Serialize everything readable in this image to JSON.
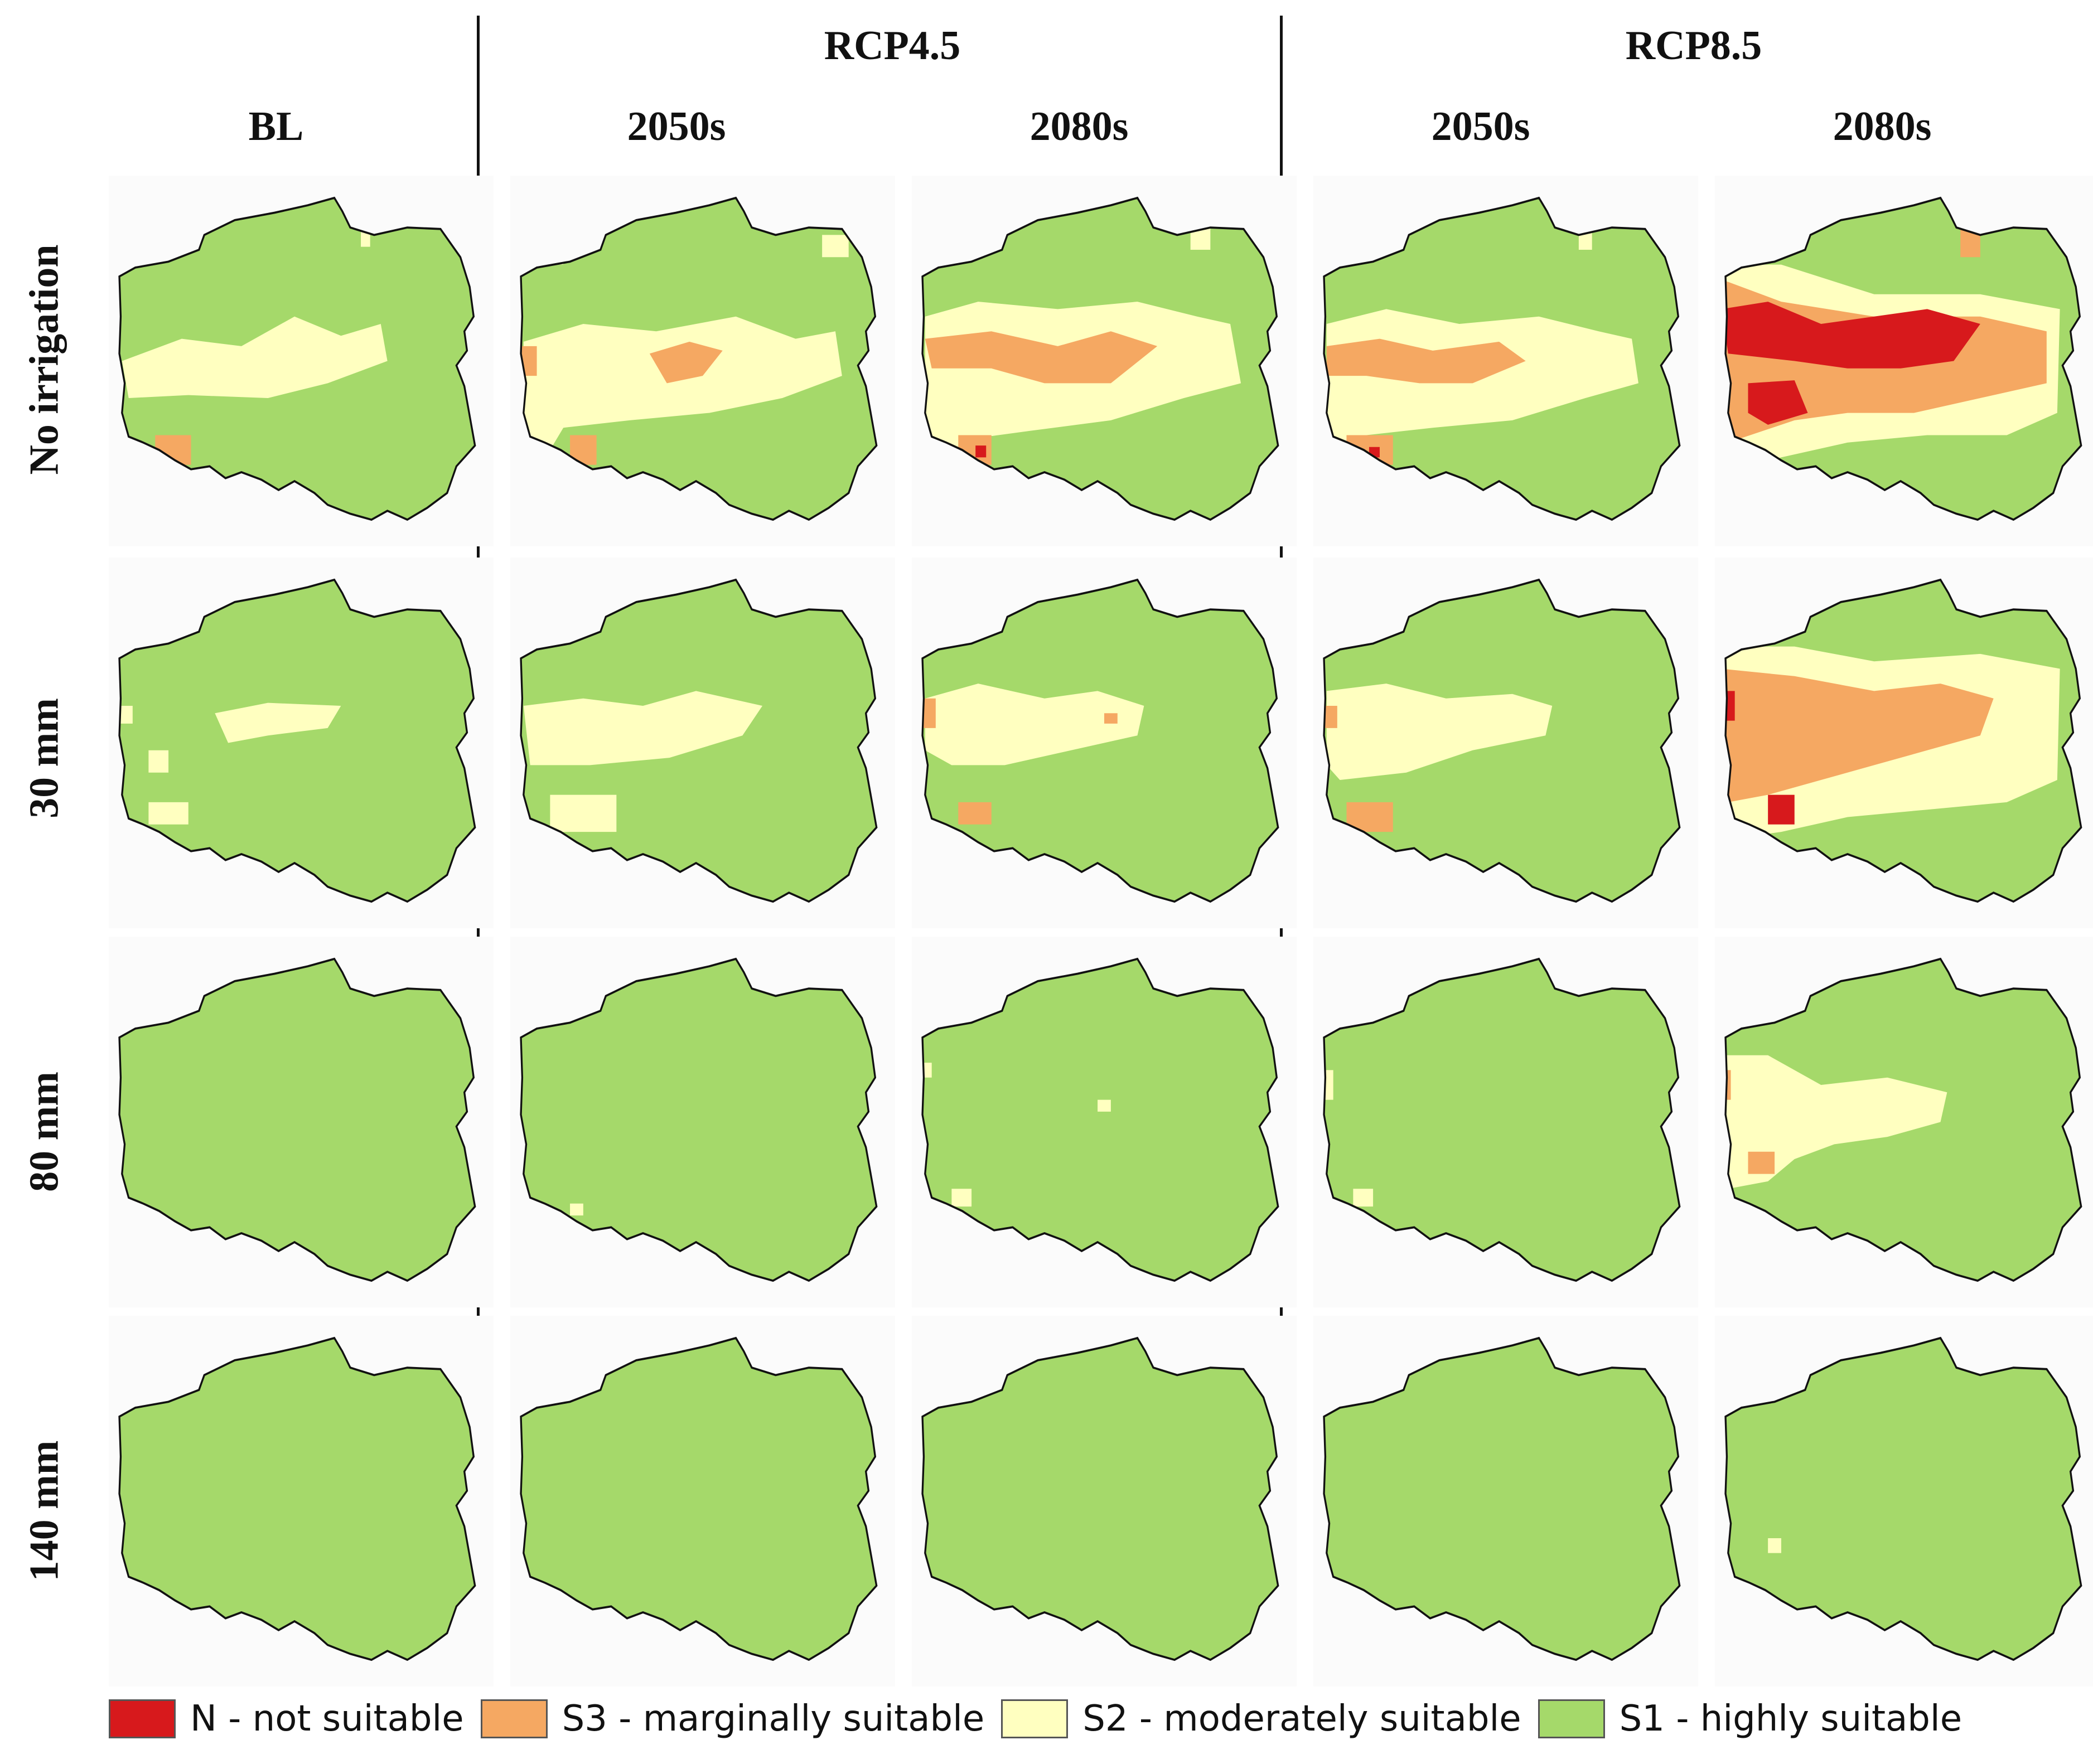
{
  "headers": {
    "scenarios": [
      {
        "id": "rcp45",
        "label": "RCP4.5"
      },
      {
        "id": "rcp85",
        "label": "RCP8.5"
      }
    ],
    "columns": [
      {
        "id": "bl",
        "label": "BL"
      },
      {
        "id": "rcp45-2050",
        "label": "2050s"
      },
      {
        "id": "rcp45-2080",
        "label": "2080s"
      },
      {
        "id": "rcp85-2050",
        "label": "2050s"
      },
      {
        "id": "rcp85-2080",
        "label": "2080s"
      }
    ],
    "rows": [
      {
        "id": "no-irrigation",
        "label": "No irrigation"
      },
      {
        "id": "30mm",
        "label": "30 mm"
      },
      {
        "id": "80mm",
        "label": "80 mm"
      },
      {
        "id": "140mm",
        "label": "140 mm"
      }
    ]
  },
  "classes": {
    "N": {
      "label": "N - not suitable",
      "color": "#d7191c"
    },
    "S3": {
      "label": "S3 - marginally suitable",
      "color": "#f5a862"
    },
    "S2": {
      "label": "S2 - moderately suitable",
      "color": "#ffffc0"
    },
    "S1": {
      "label": "S1 - highly suitable",
      "color": "#a5d96a"
    }
  },
  "legend": [
    "N",
    "S3",
    "S2",
    "S1"
  ],
  "maps": [
    {
      "row": "no-irrigation",
      "col": "bl",
      "patches": [
        [
          "S2",
          "M 10 125 L 55 110 L 100 115 L 140 95 L 175 108 L 205 100 L 210 125 L 165 140 L 120 150 L 60 148 L 15 150 Z"
        ],
        [
          "S2",
          "M 190 35 L 197 35 L 197 48 L 190 48 Z"
        ],
        [
          "S3",
          "M 35 175 L 62 175 L 62 195 L 35 195 Z"
        ]
      ]
    },
    {
      "row": "no-irrigation",
      "col": "rcp45-2050",
      "patches": [
        [
          "S2",
          "M 10 112 L 55 100 L 110 105 L 170 95 L 215 110 L 245 105 L 250 135 L 205 150 L 150 160 L 90 165 L 40 170 L 20 200 L 10 190 Z"
        ],
        [
          "S3",
          "M 105 120 L 135 112 L 160 118 L 145 135 L 118 140 Z"
        ],
        [
          "S3",
          "M 8 115 L 20 115 L 20 135 L 8 135 Z"
        ],
        [
          "S3",
          "M 45 175 L 65 175 L 65 195 L 45 195 Z"
        ],
        [
          "S2",
          "M 235 40 L 255 40 L 255 55 L 235 55 Z"
        ],
        [
          "S2",
          "M 25 45 L 40 45 L 40 60 L 25 60 Z"
        ]
      ]
    },
    {
      "row": "no-irrigation",
      "col": "rcp45-2080",
      "patches": [
        [
          "S2",
          "M 10 95 L 50 85 L 110 90 L 170 85 L 215 95 L 240 100 L 248 140 L 205 150 L 150 165 L 90 172 L 40 178 L 25 210 L 10 200 Z"
        ],
        [
          "S3",
          "M 10 110 L 60 105 L 110 115 L 150 105 L 185 115 L 150 140 L 100 140 L 60 130 L 15 130 Z"
        ],
        [
          "S3",
          "M 35 175 L 60 175 L 60 195 L 35 195 Z"
        ],
        [
          "N",
          "M 48 182 L 56 182 L 56 190 L 48 190 Z"
        ],
        [
          "S2",
          "M 20 35 L 45 35 L 45 55 L 20 55 Z"
        ],
        [
          "S2",
          "M 210 35 L 225 35 L 225 50 L 210 50 Z"
        ]
      ]
    },
    {
      "row": "no-irrigation",
      "col": "rcp85-2050",
      "patches": [
        [
          "S2",
          "M 10 100 L 55 90 L 110 100 L 170 95 L 215 105 L 240 110 L 245 140 L 205 150 L 150 165 L 90 170 L 40 175 L 20 200 L 10 190 Z"
        ],
        [
          "S3",
          "M 10 115 L 50 110 L 90 118 L 140 112 L 160 125 L 120 140 L 80 140 L 40 135 L 10 135 Z"
        ],
        [
          "S3",
          "M 25 175 L 60 175 L 60 195 L 25 195 Z"
        ],
        [
          "N",
          "M 42 183 L 50 183 L 50 190 L 42 190 Z"
        ],
        [
          "S2",
          "M 200 35 L 210 35 L 210 50 L 200 50 Z"
        ]
      ]
    },
    {
      "row": "no-irrigation",
      "col": "rcp85-2080",
      "patches": [
        [
          "S2",
          "M 5 60 L 50 60 L 120 80 L 200 80 L 260 90 L 258 160 L 220 175 L 160 175 L 100 180 L 50 190 L 10 200 Z"
        ],
        [
          "S3",
          "M 5 70 L 50 85 L 120 95 L 200 95 L 250 105 L 250 140 L 200 150 L 150 160 L 100 160 L 60 165 L 10 180 Z"
        ],
        [
          "N",
          "M 5 90 L 40 85 L 80 100 L 120 95 L 160 90 L 200 100 L 180 125 L 140 130 L 100 130 L 60 125 L 10 120 Z"
        ],
        [
          "N",
          "M 25 140 L 60 138 L 70 160 L 40 168 L 25 160 Z"
        ],
        [
          "N",
          "M 5 40 L 15 40 L 15 60 L 5 60 Z"
        ],
        [
          "S3",
          "M 185 35 L 200 35 L 200 55 L 185 55 Z"
        ]
      ]
    },
    {
      "row": "30mm",
      "col": "bl",
      "patches": [
        [
          "S2",
          "M 80 105 L 120 98 L 175 100 L 165 115 L 120 120 L 90 125 Z"
        ],
        [
          "S2",
          "M 30 130 L 45 130 L 45 145 L 30 145 Z"
        ],
        [
          "S2",
          "M 30 165 L 60 165 L 60 180 L 30 180 Z"
        ],
        [
          "S2",
          "M 8 100 L 18 100 L 18 112 L 8 112 Z"
        ]
      ]
    },
    {
      "row": "30mm",
      "col": "rcp45-2050",
      "patches": [
        [
          "S2",
          "M 10 100 L 55 95 L 100 100 L 140 90 L 190 100 L 175 120 L 120 135 L 60 140 L 15 140 Z"
        ],
        [
          "S2",
          "M 30 160 L 80 160 L 80 185 L 30 185 Z"
        ]
      ]
    },
    {
      "row": "30mm",
      "col": "rcp45-2080",
      "patches": [
        [
          "S2",
          "M 10 95 L 50 85 L 100 95 L 140 90 L 175 100 L 170 120 L 120 130 L 70 140 L 30 140 L 10 130 Z"
        ],
        [
          "S3",
          "M 35 165 L 60 165 L 60 180 L 35 180 Z"
        ],
        [
          "S3",
          "M 8 95 L 18 95 L 18 115 L 8 115 Z"
        ],
        [
          "S3",
          "M 145 105 L 155 105 L 155 112 L 145 112 Z"
        ]
      ]
    },
    {
      "row": "30mm",
      "col": "rcp85-2050",
      "patches": [
        [
          "S2",
          "M 10 90 L 55 85 L 100 95 L 150 92 L 180 100 L 175 120 L 120 130 L 70 145 L 20 150 L 10 140 Z"
        ],
        [
          "S3",
          "M 25 165 L 60 165 L 60 185 L 25 185 Z"
        ],
        [
          "S3",
          "M 8 100 L 18 100 L 18 115 L 8 115 Z"
        ]
      ]
    },
    {
      "row": "30mm",
      "col": "rcp85-2080",
      "patches": [
        [
          "S2",
          "M 5 60 L 60 60 L 120 70 L 200 65 L 260 75 L 258 150 L 220 165 L 160 170 L 100 175 L 50 185 L 10 190 Z"
        ],
        [
          "S3",
          "M 5 75 L 60 80 L 120 90 L 170 85 L 210 95 L 200 120 L 160 130 L 120 140 L 80 150 L 40 160 L 10 165 Z"
        ],
        [
          "N",
          "M 40 160 L 60 160 L 60 180 L 40 180 Z"
        ],
        [
          "N",
          "M 5 90 L 15 90 L 15 110 L 5 110 Z"
        ]
      ]
    },
    {
      "row": "80mm",
      "col": "bl",
      "patches": []
    },
    {
      "row": "80mm",
      "col": "rcp45-2050",
      "patches": [
        [
          "S2",
          "M 45 180 L 55 180 L 55 188 L 45 188 Z"
        ]
      ]
    },
    {
      "row": "80mm",
      "col": "rcp45-2080",
      "patches": [
        [
          "S2",
          "M 30 170 L 45 170 L 45 182 L 30 182 Z"
        ],
        [
          "S2",
          "M 140 110 L 150 110 L 150 118 L 140 118 Z"
        ],
        [
          "S2",
          "M 8 85 L 15 85 L 15 95 L 8 95 Z"
        ]
      ]
    },
    {
      "row": "80mm",
      "col": "rcp85-2050",
      "patches": [
        [
          "S2",
          "M 30 170 L 45 170 L 45 182 L 30 182 Z"
        ],
        [
          "S2",
          "M 8 90 L 15 90 L 15 110 L 8 110 Z"
        ]
      ]
    },
    {
      "row": "80mm",
      "col": "rcp85-2080",
      "patches": [
        [
          "S2",
          "M 5 80 L 40 80 L 80 100 L 130 95 L 175 105 L 170 125 L 130 135 L 90 140 L 60 150 L 40 165 L 10 170 Z"
        ],
        [
          "S3",
          "M 5 90 L 12 90 L 12 110 L 5 110 Z"
        ],
        [
          "S3",
          "M 25 145 L 45 145 L 45 160 L 25 160 Z"
        ]
      ]
    },
    {
      "row": "140mm",
      "col": "bl",
      "patches": []
    },
    {
      "row": "140mm",
      "col": "rcp45-2050",
      "patches": []
    },
    {
      "row": "140mm",
      "col": "rcp45-2080",
      "patches": []
    },
    {
      "row": "140mm",
      "col": "rcp85-2050",
      "patches": []
    },
    {
      "row": "140mm",
      "col": "rcp85-2080",
      "patches": [
        [
          "S2",
          "M 40 150 L 50 150 L 50 160 L 40 160 Z"
        ]
      ]
    }
  ]
}
